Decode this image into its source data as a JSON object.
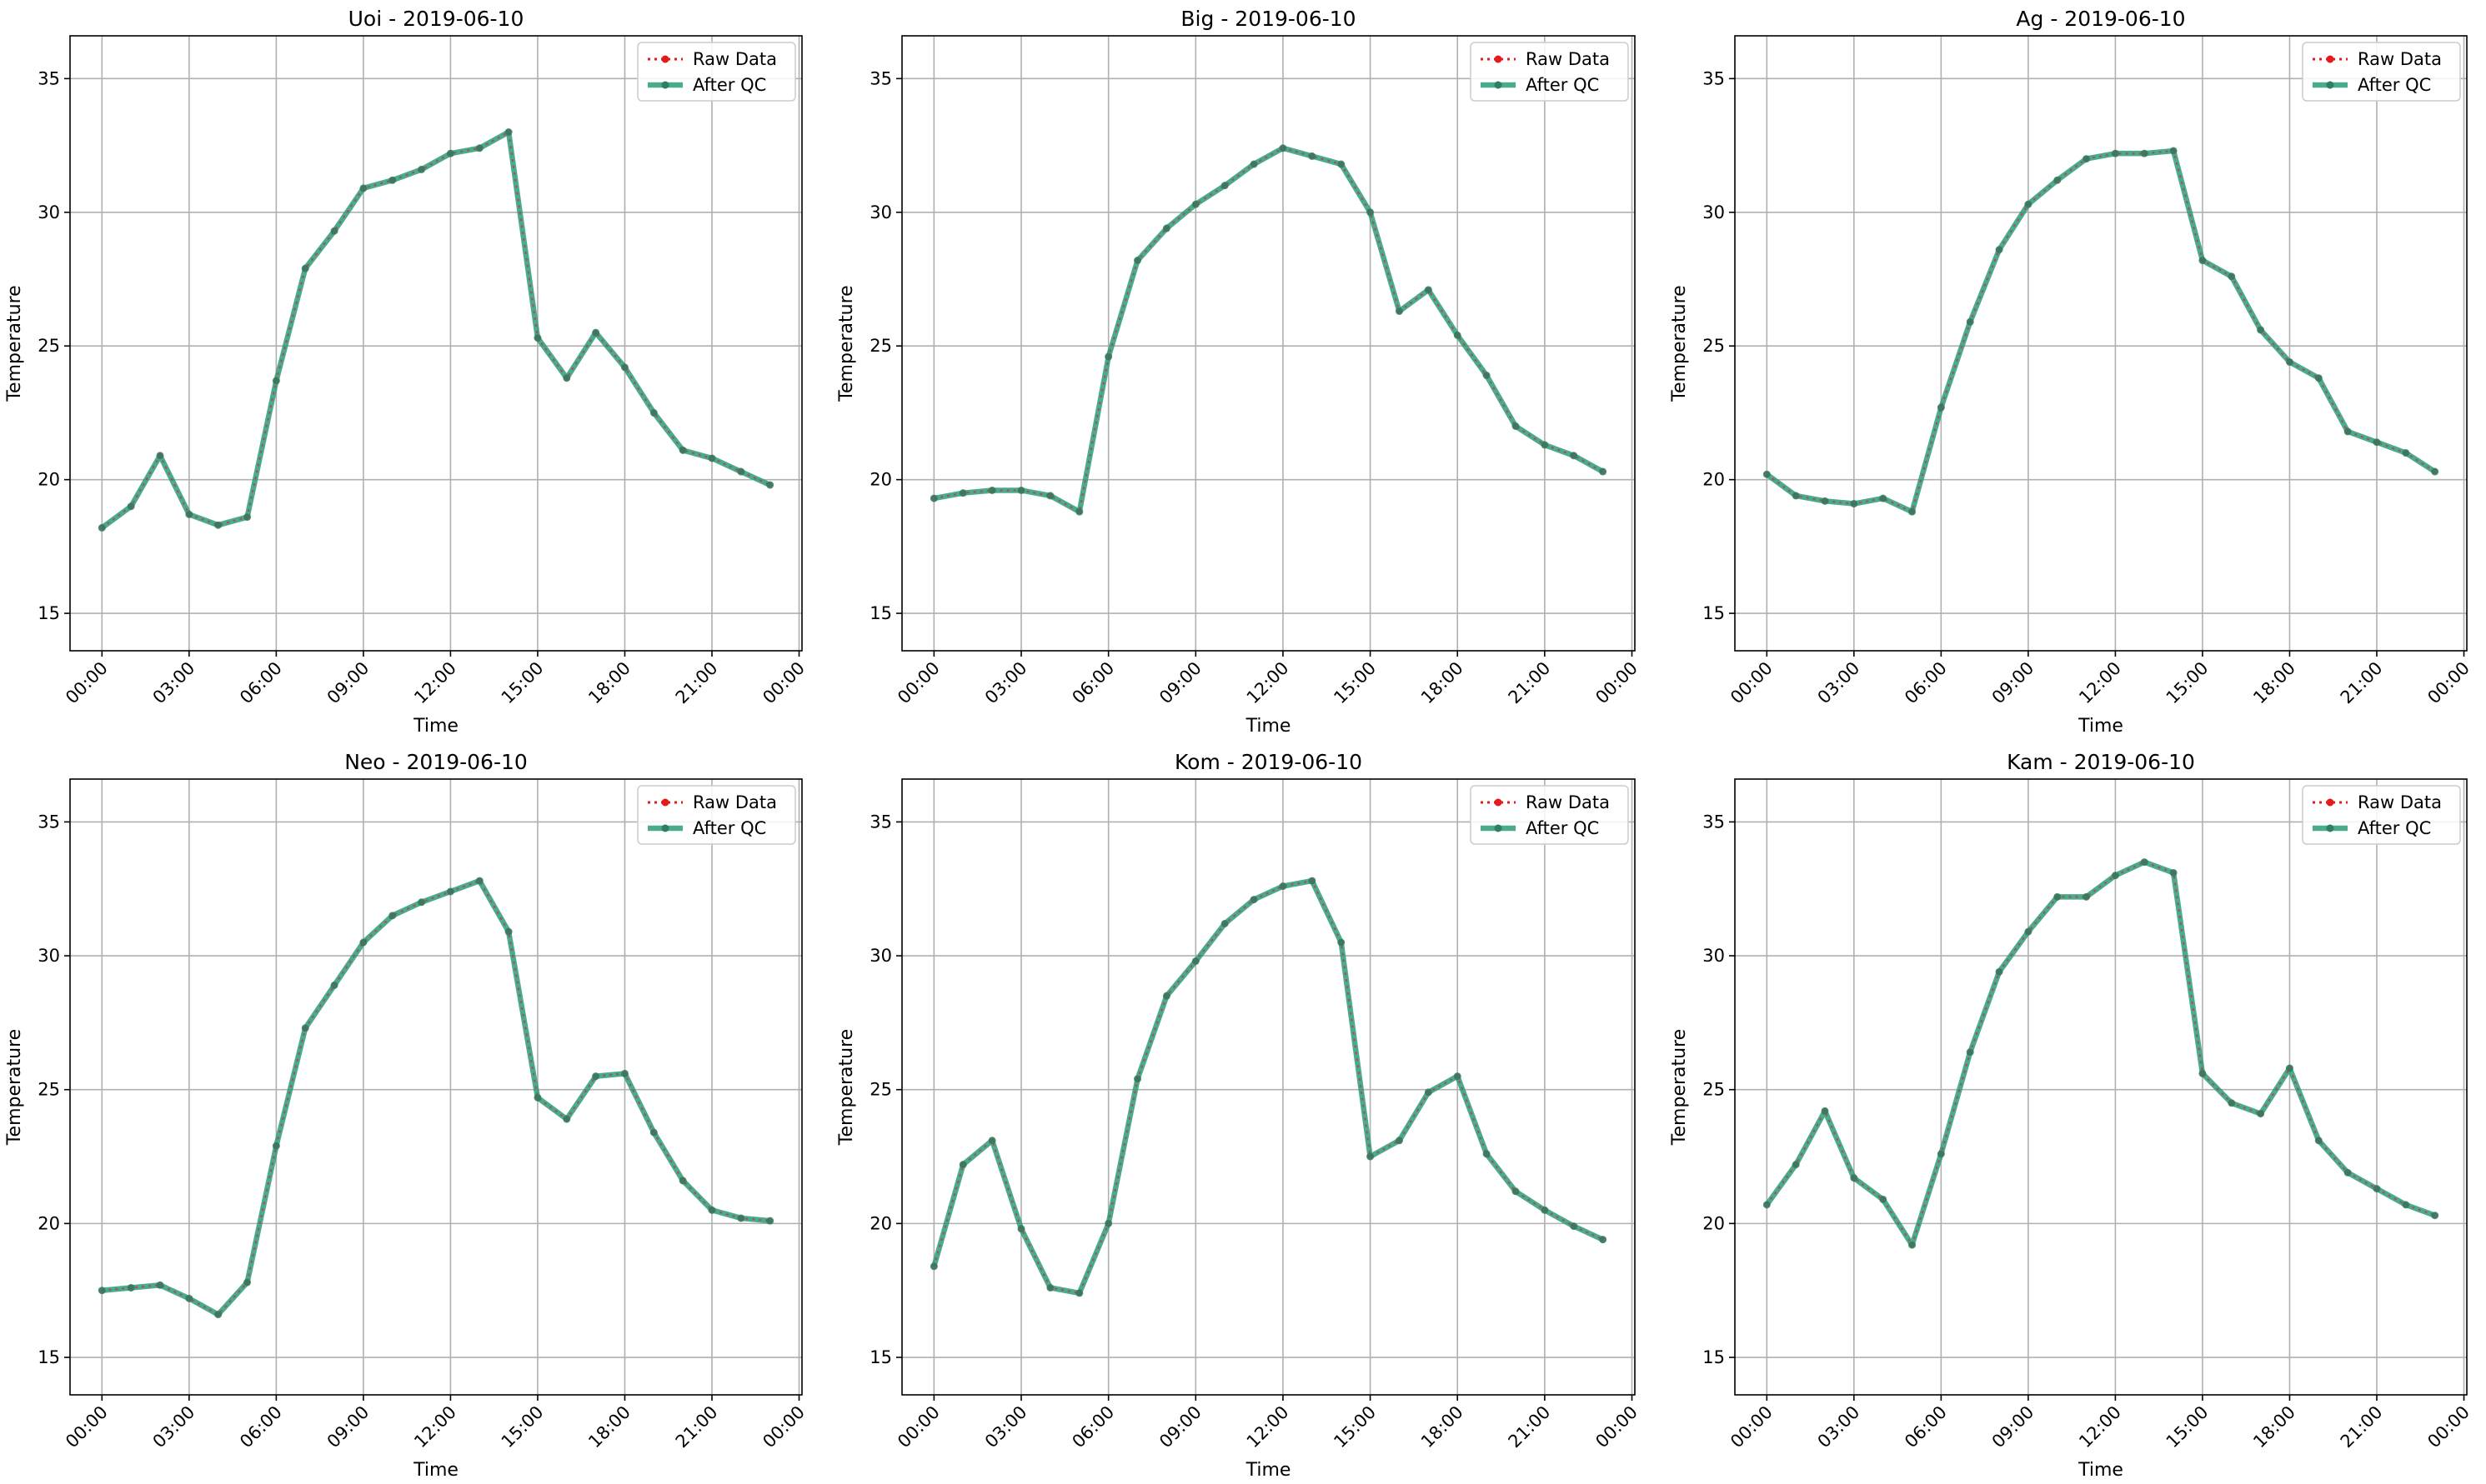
{
  "colors": {
    "raw": "#e41a1c",
    "qc": "#2a9d7a",
    "qc_marker": "#2f7f63",
    "grid": "#b0b0b0"
  },
  "legend": {
    "raw_label": "Raw Data",
    "qc_label": "After QC",
    "placement": "upper right"
  },
  "chart_data": [
    {
      "type": "line",
      "title": "Uoi - 2019-06-10",
      "xlabel": "Time",
      "ylabel": "Temperature",
      "ylim": [
        13.6,
        36.6
      ],
      "yticks": [
        15,
        20,
        25,
        30,
        35
      ],
      "xlim_hours": [
        -1.1,
        24.1
      ],
      "xticks": [
        "00:00",
        "03:00",
        "06:00",
        "09:00",
        "12:00",
        "15:00",
        "18:00",
        "21:00",
        "00:00"
      ],
      "grid": true,
      "x": [
        "00:00",
        "01:00",
        "02:00",
        "03:00",
        "04:00",
        "05:00",
        "06:00",
        "07:00",
        "08:00",
        "09:00",
        "10:00",
        "11:00",
        "12:00",
        "13:00",
        "14:00",
        "15:00",
        "16:00",
        "17:00",
        "18:00",
        "19:00",
        "20:00",
        "21:00",
        "22:00",
        "23:00"
      ],
      "series": [
        {
          "name": "Raw Data",
          "values": [
            18.2,
            19.0,
            20.9,
            18.7,
            18.3,
            18.6,
            23.7,
            27.9,
            29.3,
            30.9,
            31.2,
            31.6,
            32.2,
            32.4,
            33.0,
            25.3,
            23.8,
            25.5,
            24.2,
            22.5,
            21.1,
            20.8,
            20.3,
            19.8
          ]
        },
        {
          "name": "After QC",
          "values": [
            18.2,
            19.0,
            20.9,
            18.7,
            18.3,
            18.6,
            23.7,
            27.9,
            29.3,
            30.9,
            31.2,
            31.6,
            32.2,
            32.4,
            33.0,
            25.3,
            23.8,
            25.5,
            24.2,
            22.5,
            21.1,
            20.8,
            20.3,
            19.8
          ]
        }
      ]
    },
    {
      "type": "line",
      "title": "Big - 2019-06-10",
      "xlabel": "Time",
      "ylabel": "Temperature",
      "ylim": [
        13.6,
        36.6
      ],
      "yticks": [
        15,
        20,
        25,
        30,
        35
      ],
      "xlim_hours": [
        -1.1,
        24.1
      ],
      "xticks": [
        "00:00",
        "03:00",
        "06:00",
        "09:00",
        "12:00",
        "15:00",
        "18:00",
        "21:00",
        "00:00"
      ],
      "grid": true,
      "x": [
        "00:00",
        "01:00",
        "02:00",
        "03:00",
        "04:00",
        "05:00",
        "06:00",
        "07:00",
        "08:00",
        "09:00",
        "10:00",
        "11:00",
        "12:00",
        "13:00",
        "14:00",
        "15:00",
        "16:00",
        "17:00",
        "18:00",
        "19:00",
        "20:00",
        "21:00",
        "22:00",
        "23:00"
      ],
      "series": [
        {
          "name": "Raw Data",
          "values": [
            19.3,
            19.5,
            19.6,
            19.6,
            19.4,
            18.8,
            24.6,
            28.2,
            29.4,
            30.3,
            31.0,
            31.8,
            32.4,
            32.1,
            31.8,
            30.0,
            26.3,
            27.1,
            25.4,
            23.9,
            22.0,
            21.3,
            20.9,
            20.3
          ]
        },
        {
          "name": "After QC",
          "values": [
            19.3,
            19.5,
            19.6,
            19.6,
            19.4,
            18.8,
            24.6,
            28.2,
            29.4,
            30.3,
            31.0,
            31.8,
            32.4,
            32.1,
            31.8,
            30.0,
            26.3,
            27.1,
            25.4,
            23.9,
            22.0,
            21.3,
            20.9,
            20.3
          ]
        }
      ]
    },
    {
      "type": "line",
      "title": "Ag - 2019-06-10",
      "xlabel": "Time",
      "ylabel": "Temperature",
      "ylim": [
        13.6,
        36.6
      ],
      "yticks": [
        15,
        20,
        25,
        30,
        35
      ],
      "xlim_hours": [
        -1.1,
        24.1
      ],
      "xticks": [
        "00:00",
        "03:00",
        "06:00",
        "09:00",
        "12:00",
        "15:00",
        "18:00",
        "21:00",
        "00:00"
      ],
      "grid": true,
      "x": [
        "00:00",
        "01:00",
        "02:00",
        "03:00",
        "04:00",
        "05:00",
        "06:00",
        "07:00",
        "08:00",
        "09:00",
        "10:00",
        "11:00",
        "12:00",
        "13:00",
        "14:00",
        "15:00",
        "16:00",
        "17:00",
        "18:00",
        "19:00",
        "20:00",
        "21:00",
        "22:00",
        "23:00"
      ],
      "series": [
        {
          "name": "Raw Data",
          "values": [
            20.2,
            19.4,
            19.2,
            19.1,
            19.3,
            18.8,
            22.7,
            25.9,
            28.6,
            30.3,
            31.2,
            32.0,
            32.2,
            32.2,
            32.3,
            28.2,
            27.6,
            25.6,
            24.4,
            23.8,
            21.8,
            21.4,
            21.0,
            20.3
          ]
        },
        {
          "name": "After QC",
          "values": [
            20.2,
            19.4,
            19.2,
            19.1,
            19.3,
            18.8,
            22.7,
            25.9,
            28.6,
            30.3,
            31.2,
            32.0,
            32.2,
            32.2,
            32.3,
            28.2,
            27.6,
            25.6,
            24.4,
            23.8,
            21.8,
            21.4,
            21.0,
            20.3
          ]
        }
      ]
    },
    {
      "type": "line",
      "title": "Neo - 2019-06-10",
      "xlabel": "Time",
      "ylabel": "Temperature",
      "ylim": [
        13.6,
        36.6
      ],
      "yticks": [
        15,
        20,
        25,
        30,
        35
      ],
      "xlim_hours": [
        -1.1,
        24.1
      ],
      "xticks": [
        "00:00",
        "03:00",
        "06:00",
        "09:00",
        "12:00",
        "15:00",
        "18:00",
        "21:00",
        "00:00"
      ],
      "grid": true,
      "x": [
        "00:00",
        "01:00",
        "02:00",
        "03:00",
        "04:00",
        "05:00",
        "06:00",
        "07:00",
        "08:00",
        "09:00",
        "10:00",
        "11:00",
        "12:00",
        "13:00",
        "14:00",
        "15:00",
        "16:00",
        "17:00",
        "18:00",
        "19:00",
        "20:00",
        "21:00",
        "22:00",
        "23:00"
      ],
      "series": [
        {
          "name": "Raw Data",
          "values": [
            17.5,
            17.6,
            17.7,
            17.2,
            16.6,
            17.8,
            22.9,
            27.3,
            28.9,
            30.5,
            31.5,
            32.0,
            32.4,
            32.8,
            30.9,
            24.7,
            23.9,
            25.5,
            25.6,
            23.4,
            21.6,
            20.5,
            20.2,
            20.1
          ]
        },
        {
          "name": "After QC",
          "values": [
            17.5,
            17.6,
            17.7,
            17.2,
            16.6,
            17.8,
            22.9,
            27.3,
            28.9,
            30.5,
            31.5,
            32.0,
            32.4,
            32.8,
            30.9,
            24.7,
            23.9,
            25.5,
            25.6,
            23.4,
            21.6,
            20.5,
            20.2,
            20.1
          ]
        }
      ]
    },
    {
      "type": "line",
      "title": "Kom - 2019-06-10",
      "xlabel": "Time",
      "ylabel": "Temperature",
      "ylim": [
        13.6,
        36.6
      ],
      "yticks": [
        15,
        20,
        25,
        30,
        35
      ],
      "xlim_hours": [
        -1.1,
        24.1
      ],
      "xticks": [
        "00:00",
        "03:00",
        "06:00",
        "09:00",
        "12:00",
        "15:00",
        "18:00",
        "21:00",
        "00:00"
      ],
      "grid": true,
      "x": [
        "00:00",
        "01:00",
        "02:00",
        "03:00",
        "04:00",
        "05:00",
        "06:00",
        "07:00",
        "08:00",
        "09:00",
        "10:00",
        "11:00",
        "12:00",
        "13:00",
        "14:00",
        "15:00",
        "16:00",
        "17:00",
        "18:00",
        "19:00",
        "20:00",
        "21:00",
        "22:00",
        "23:00"
      ],
      "series": [
        {
          "name": "Raw Data",
          "values": [
            18.4,
            22.2,
            23.1,
            19.8,
            17.6,
            17.4,
            20.0,
            25.4,
            28.5,
            29.8,
            31.2,
            32.1,
            32.6,
            32.8,
            30.5,
            22.5,
            23.1,
            24.9,
            25.5,
            22.6,
            21.2,
            20.5,
            19.9,
            19.4
          ]
        },
        {
          "name": "After QC",
          "values": [
            18.4,
            22.2,
            23.1,
            19.8,
            17.6,
            17.4,
            20.0,
            25.4,
            28.5,
            29.8,
            31.2,
            32.1,
            32.6,
            32.8,
            30.5,
            22.5,
            23.1,
            24.9,
            25.5,
            22.6,
            21.2,
            20.5,
            19.9,
            19.4
          ]
        }
      ]
    },
    {
      "type": "line",
      "title": "Kam - 2019-06-10",
      "xlabel": "Time",
      "ylabel": "Temperature",
      "ylim": [
        13.6,
        36.6
      ],
      "yticks": [
        15,
        20,
        25,
        30,
        35
      ],
      "xlim_hours": [
        -1.1,
        24.1
      ],
      "xticks": [
        "00:00",
        "03:00",
        "06:00",
        "09:00",
        "12:00",
        "15:00",
        "18:00",
        "21:00",
        "00:00"
      ],
      "grid": true,
      "x": [
        "00:00",
        "01:00",
        "02:00",
        "03:00",
        "04:00",
        "05:00",
        "06:00",
        "07:00",
        "08:00",
        "09:00",
        "10:00",
        "11:00",
        "12:00",
        "13:00",
        "14:00",
        "15:00",
        "16:00",
        "17:00",
        "18:00",
        "19:00",
        "20:00",
        "21:00",
        "22:00",
        "23:00"
      ],
      "series": [
        {
          "name": "Raw Data",
          "values": [
            20.7,
            22.2,
            24.2,
            21.7,
            20.9,
            19.2,
            22.6,
            26.4,
            29.4,
            30.9,
            32.2,
            32.2,
            33.0,
            33.5,
            33.1,
            25.6,
            24.5,
            24.1,
            25.8,
            23.1,
            21.9,
            21.3,
            20.7,
            20.3
          ]
        },
        {
          "name": "After QC",
          "values": [
            20.7,
            22.2,
            24.2,
            21.7,
            20.9,
            19.2,
            22.6,
            26.4,
            29.4,
            30.9,
            32.2,
            32.2,
            33.0,
            33.5,
            33.1,
            25.6,
            24.5,
            24.1,
            25.8,
            23.1,
            21.9,
            21.3,
            20.7,
            20.3
          ]
        }
      ]
    }
  ]
}
